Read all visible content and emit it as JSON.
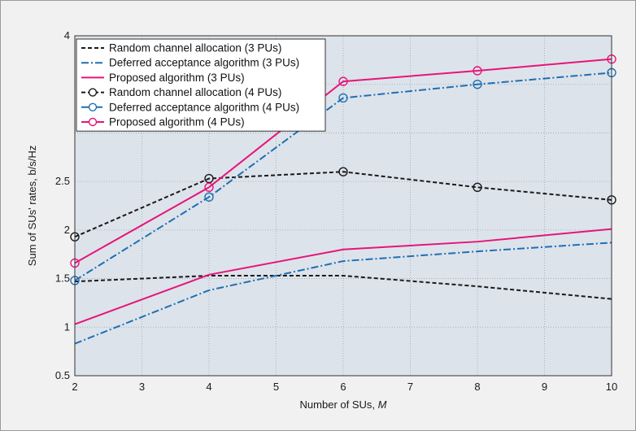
{
  "chart_data": {
    "type": "line",
    "xlabel_text": "Number of SUs, ",
    "xlabel_var": "M",
    "ylabel": "Sum of SUs' rates, b/s/Hz",
    "xlim": [
      2,
      10
    ],
    "ylim": [
      0.5,
      4
    ],
    "x_ticks": [
      2,
      3,
      4,
      5,
      6,
      7,
      8,
      9,
      10
    ],
    "y_ticks": [
      0.5,
      1,
      1.5,
      2,
      2.5,
      3,
      3.5,
      4
    ],
    "y_tick_labels": [
      "0.5",
      "1",
      "1.5",
      "2",
      "2.5",
      "",
      "",
      "4"
    ],
    "grid": true,
    "legend_position": "top-left",
    "x": [
      2,
      4,
      6,
      8,
      10
    ],
    "series": [
      {
        "name": "Random channel allocation (3 PUs)",
        "values": [
          1.47,
          1.53,
          1.53,
          1.42,
          1.29
        ],
        "color": "#1a1a1a",
        "dash": "dashed",
        "marker": false
      },
      {
        "name": "Deferred acceptance algorithm (3 PUs)",
        "values": [
          0.83,
          1.38,
          1.68,
          1.78,
          1.87
        ],
        "color": "#1f6fb4",
        "dash": "dashdot",
        "marker": false
      },
      {
        "name": "Proposed algorithm (3 PUs)",
        "values": [
          1.03,
          1.54,
          1.8,
          1.88,
          2.01
        ],
        "color": "#e5157a",
        "dash": "solid",
        "marker": false
      },
      {
        "name": "Random channel allocation (4 PUs)",
        "values": [
          1.93,
          2.53,
          2.6,
          2.44,
          2.31
        ],
        "color": "#1a1a1a",
        "dash": "dashed",
        "marker": true
      },
      {
        "name": "Deferred acceptance algorithm (4 PUs)",
        "values": [
          1.48,
          2.34,
          3.36,
          3.5,
          3.62
        ],
        "color": "#1f6fb4",
        "dash": "dashdot",
        "marker": true
      },
      {
        "name": "Proposed algorithm (4 PUs)",
        "values": [
          1.66,
          2.44,
          3.53,
          3.64,
          3.76
        ],
        "color": "#e5157a",
        "dash": "solid",
        "marker": true
      }
    ]
  }
}
